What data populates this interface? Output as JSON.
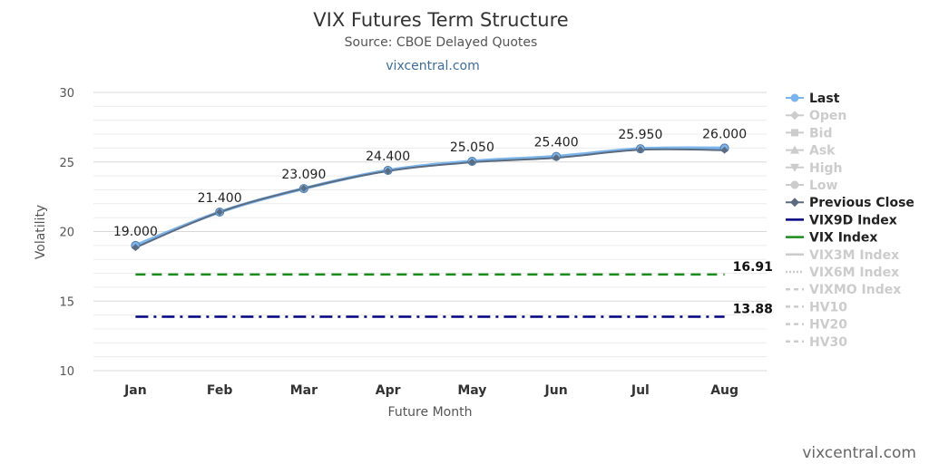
{
  "chart_data": {
    "type": "line",
    "title": "VIX Futures Term Structure",
    "subtitle": "Source: CBOE Delayed Quotes",
    "link_text": "vixcentral.com",
    "xlabel": "Future Month",
    "ylabel": "Volatility",
    "ylim": [
      10,
      30
    ],
    "yticks": [
      "10",
      "15",
      "20",
      "25",
      "30"
    ],
    "grid": true,
    "legend_position": "right",
    "categories": [
      "Jan",
      "Feb",
      "Mar",
      "Apr",
      "May",
      "Jun",
      "Jul",
      "Aug"
    ],
    "series": [
      {
        "name": "Last",
        "values": [
          19.0,
          21.4,
          23.09,
          24.4,
          25.05,
          25.4,
          25.95,
          26.0
        ],
        "labels": [
          "19.000",
          "21.400",
          "23.090",
          "24.400",
          "25.050",
          "25.400",
          "25.950",
          "26.000"
        ],
        "color": "#7cb5ec"
      },
      {
        "name": "Previous Close",
        "values": [
          18.85,
          21.4,
          23.1,
          24.35,
          24.98,
          25.3,
          25.88,
          25.85
        ],
        "color": "#5b6b80"
      }
    ],
    "reference_lines": [
      {
        "name": "VIX Index",
        "value": 16.91,
        "label": "16.91",
        "color": "#1a8c1a",
        "style": "dashed"
      },
      {
        "name": "VIX9D Index",
        "value": 13.88,
        "label": "13.88",
        "color": "#000080",
        "style": "dashdot"
      }
    ],
    "legend": [
      {
        "name": "Last",
        "active": true,
        "color": "#7cb5ec",
        "symbol": "circle"
      },
      {
        "name": "Open",
        "active": false,
        "symbol": "diamond"
      },
      {
        "name": "Bid",
        "active": false,
        "symbol": "square"
      },
      {
        "name": "Ask",
        "active": false,
        "symbol": "triangle"
      },
      {
        "name": "High",
        "active": false,
        "symbol": "triangle-down"
      },
      {
        "name": "Low",
        "active": false,
        "symbol": "circle"
      },
      {
        "name": "Previous Close",
        "active": true,
        "color": "#5b6b80",
        "symbol": "diamond"
      },
      {
        "name": "VIX9D Index",
        "active": true,
        "color": "#000080",
        "symbol": "line"
      },
      {
        "name": "VIX Index",
        "active": true,
        "color": "#1a8c1a",
        "symbol": "line"
      },
      {
        "name": "VIX3M Index",
        "active": false,
        "symbol": "line"
      },
      {
        "name": "VIX6M Index",
        "active": false,
        "symbol": "dotted"
      },
      {
        "name": "VIXMO Index",
        "active": false,
        "symbol": "dashed"
      },
      {
        "name": "HV10",
        "active": false,
        "symbol": "dashed"
      },
      {
        "name": "HV20",
        "active": false,
        "symbol": "dashed"
      },
      {
        "name": "HV30",
        "active": false,
        "symbol": "dashed"
      }
    ],
    "credit": "vixcentral.com"
  }
}
